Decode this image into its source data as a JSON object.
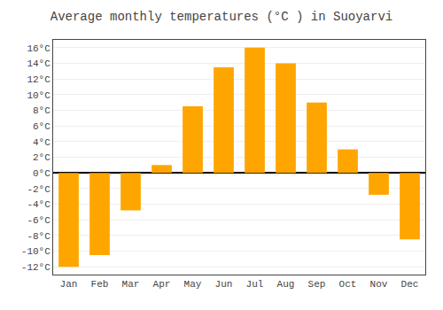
{
  "chart_data": {
    "type": "bar",
    "title": "Average monthly temperatures (°C ) in Suoyarvi",
    "categories": [
      "Jan",
      "Feb",
      "Mar",
      "Apr",
      "May",
      "Jun",
      "Jul",
      "Aug",
      "Sep",
      "Oct",
      "Nov",
      "Dec"
    ],
    "values": [
      -12,
      -10.5,
      -4.8,
      1.0,
      8.5,
      13.5,
      16.0,
      14.0,
      9.0,
      3.0,
      -2.8,
      -8.5
    ],
    "color": "#FFA500",
    "ylim": [
      -13,
      17
    ],
    "yticks": [
      {
        "value": -12,
        "label": "-12°C"
      },
      {
        "value": -10,
        "label": "-10°C"
      },
      {
        "value": -8,
        "label": "-8°C"
      },
      {
        "value": -6,
        "label": "-6°C"
      },
      {
        "value": -4,
        "label": "-4°C"
      },
      {
        "value": -2,
        "label": "-2°C"
      },
      {
        "value": 0,
        "label": "0°C"
      },
      {
        "value": 2,
        "label": "2°C"
      },
      {
        "value": 4,
        "label": "4°C"
      },
      {
        "value": 6,
        "label": "6°C"
      },
      {
        "value": 8,
        "label": "8°C"
      },
      {
        "value": 10,
        "label": "10°C"
      },
      {
        "value": 12,
        "label": "12°C"
      },
      {
        "value": 14,
        "label": "14°C"
      },
      {
        "value": 16,
        "label": "16°C"
      }
    ],
    "grid": true
  }
}
